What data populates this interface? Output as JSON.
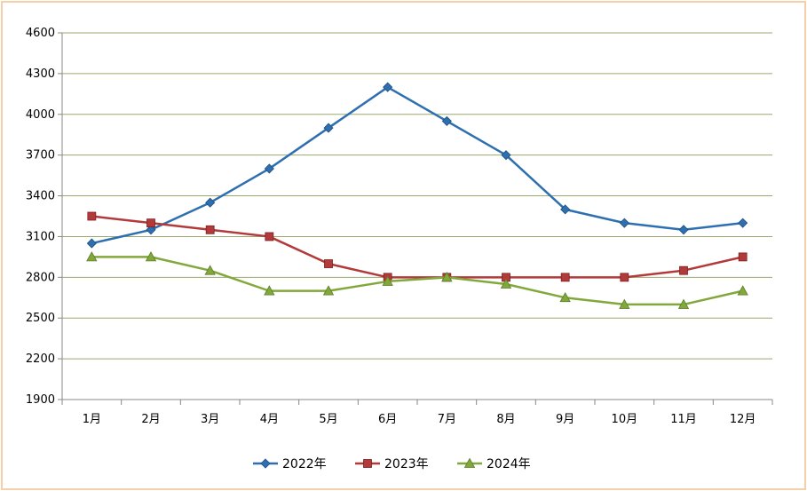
{
  "chart_data": {
    "type": "line",
    "title": "",
    "xlabel": "",
    "ylabel": "",
    "categories": [
      "1月",
      "2月",
      "3月",
      "4月",
      "5月",
      "6月",
      "7月",
      "8月",
      "9月",
      "10月",
      "11月",
      "12月"
    ],
    "ylim": [
      1900,
      4600
    ],
    "yticks": [
      1900,
      2200,
      2500,
      2800,
      3100,
      3400,
      3700,
      4000,
      4300,
      4600
    ],
    "grid": true,
    "legend_position": "bottom",
    "series": [
      {
        "name": "2022年",
        "color": "#2e6fb0",
        "marker": "diamond",
        "values": [
          3050,
          3150,
          3350,
          3600,
          3900,
          4200,
          3950,
          3700,
          3300,
          3200,
          3150,
          3200
        ]
      },
      {
        "name": "2023年",
        "color": "#b23a3a",
        "marker": "square",
        "values": [
          3250,
          3200,
          3150,
          3100,
          2900,
          2800,
          2800,
          2800,
          2800,
          2800,
          2850,
          2950
        ]
      },
      {
        "name": "2024年",
        "color": "#82a83c",
        "marker": "triangle",
        "values": [
          2950,
          2950,
          2850,
          2700,
          2700,
          2770,
          2800,
          2750,
          2650,
          2600,
          2600,
          2700
        ]
      }
    ]
  }
}
